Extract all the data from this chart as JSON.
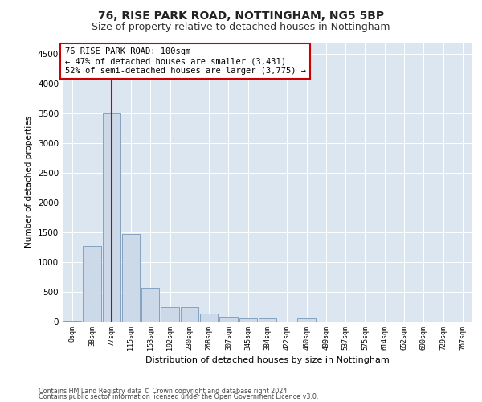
{
  "title1": "76, RISE PARK ROAD, NOTTINGHAM, NG5 5BP",
  "title2": "Size of property relative to detached houses in Nottingham",
  "xlabel": "Distribution of detached houses by size in Nottingham",
  "ylabel": "Number of detached properties",
  "bin_labels": [
    "0sqm",
    "38sqm",
    "77sqm",
    "115sqm",
    "153sqm",
    "192sqm",
    "230sqm",
    "268sqm",
    "307sqm",
    "345sqm",
    "384sqm",
    "422sqm",
    "460sqm",
    "499sqm",
    "537sqm",
    "575sqm",
    "614sqm",
    "652sqm",
    "690sqm",
    "729sqm",
    "767sqm"
  ],
  "bar_values": [
    20,
    1270,
    3500,
    1470,
    570,
    250,
    250,
    130,
    85,
    60,
    50,
    0,
    50,
    0,
    0,
    0,
    0,
    0,
    0,
    0,
    0
  ],
  "bar_color": "#ccd9e8",
  "bar_edgecolor": "#7799bb",
  "property_bin_index": 2,
  "vline_color": "#cc0000",
  "annotation_text": "76 RISE PARK ROAD: 100sqm\n← 47% of detached houses are smaller (3,431)\n52% of semi-detached houses are larger (3,775) →",
  "annotation_box_facecolor": "#ffffff",
  "annotation_box_edgecolor": "#cc0000",
  "ylim": [
    0,
    4700
  ],
  "yticks": [
    0,
    500,
    1000,
    1500,
    2000,
    2500,
    3000,
    3500,
    4000,
    4500
  ],
  "footer1": "Contains HM Land Registry data © Crown copyright and database right 2024.",
  "footer2": "Contains public sector information licensed under the Open Government Licence v3.0.",
  "fig_facecolor": "#ffffff",
  "plot_bg_color": "#dce6f0",
  "grid_color": "#ffffff",
  "title1_fontsize": 10,
  "title2_fontsize": 9
}
